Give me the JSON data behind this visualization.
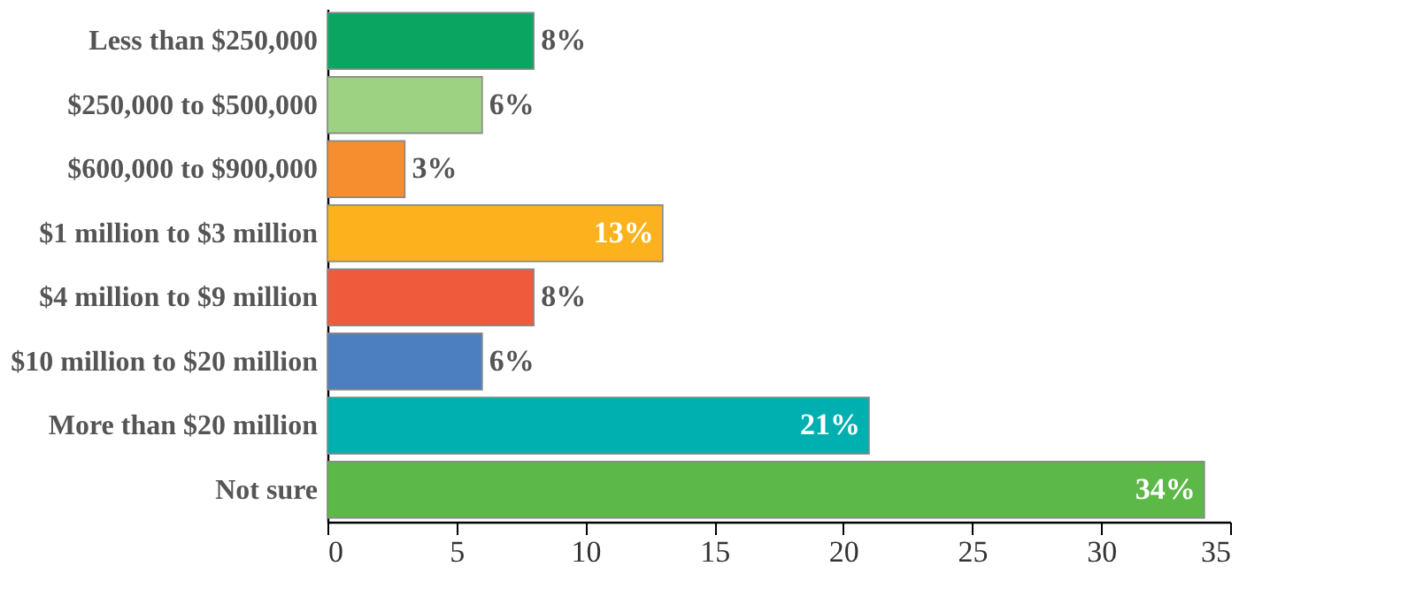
{
  "chart_data": {
    "type": "bar",
    "orientation": "horizontal",
    "categories": [
      "Less than $250,000",
      "$250,000 to $500,000",
      "$600,000 to $900,000",
      "$1 million to $3 million",
      "$4 million to $9 million",
      "$10 million to $20 million",
      "More than $20 million",
      "Not sure"
    ],
    "values": [
      8,
      6,
      3,
      13,
      8,
      6,
      21,
      34
    ],
    "colors": [
      "#0ba562",
      "#9dd283",
      "#f68d2e",
      "#fbb21c",
      "#ee5b3c",
      "#4c7fc0",
      "#00afb0",
      "#5cb947"
    ],
    "value_labels": [
      "8%",
      "6%",
      "3%",
      "13%",
      "8%",
      "6%",
      "21%",
      "34%"
    ],
    "xlim": [
      0,
      35
    ],
    "xticks": [
      0,
      5,
      10,
      15,
      20,
      25,
      30,
      35
    ],
    "grid": false
  }
}
